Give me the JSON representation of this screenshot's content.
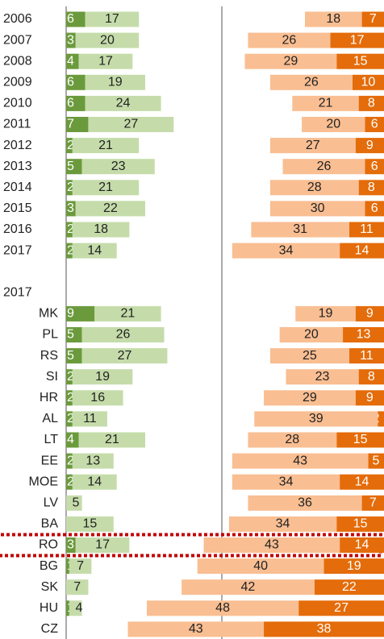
{
  "chart_data": {
    "type": "diverging-bar",
    "categories": [
      "2006",
      "2007",
      "2008",
      "2009",
      "2010",
      "2011",
      "2012",
      "2013",
      "2014",
      "2015",
      "2016",
      "2017",
      "MK",
      "PL",
      "RS",
      "SI",
      "HR",
      "AL",
      "LT",
      "EE",
      "MOE",
      "LV",
      "BA",
      "RO",
      "BG",
      "SK",
      "HU",
      "CZ"
    ],
    "section_label": "2017",
    "left_series": [
      {
        "color": "#6b9a3c",
        "values": [
          6,
          3,
          4,
          6,
          6,
          7,
          2,
          5,
          2,
          3,
          2,
          2,
          9,
          5,
          5,
          2,
          2,
          2,
          4,
          2,
          2,
          null,
          null,
          3,
          1,
          null,
          1,
          null
        ]
      },
      {
        "color": "#c5dcaa",
        "values": [
          17,
          20,
          17,
          19,
          24,
          27,
          21,
          23,
          21,
          22,
          18,
          14,
          21,
          26,
          27,
          19,
          16,
          11,
          21,
          13,
          14,
          5,
          15,
          17,
          7,
          7,
          4,
          null
        ]
      }
    ],
    "right_series": [
      {
        "color": "#f9be92",
        "values": [
          18,
          26,
          29,
          26,
          21,
          20,
          27,
          26,
          28,
          30,
          31,
          34,
          19,
          20,
          25,
          23,
          29,
          39,
          28,
          43,
          34,
          36,
          34,
          43,
          40,
          42,
          48,
          43
        ]
      },
      {
        "color": "#e46c0a",
        "values": [
          7,
          17,
          15,
          10,
          8,
          6,
          9,
          6,
          8,
          6,
          11,
          14,
          9,
          13,
          11,
          8,
          9,
          2,
          15,
          5,
          14,
          7,
          15,
          14,
          19,
          22,
          27,
          38
        ]
      }
    ],
    "highlight": "RO"
  }
}
